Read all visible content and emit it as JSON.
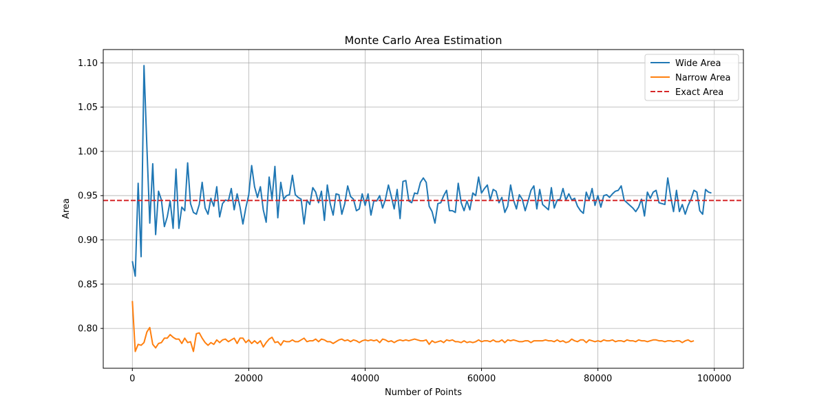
{
  "chart_data": {
    "type": "line",
    "title": "Monte Carlo Area Estimation",
    "xlabel": "Number of Points",
    "ylabel": "Area",
    "xlim": [
      -5000,
      105000
    ],
    "ylim": [
      0.755,
      1.115
    ],
    "xticks": [
      0,
      20000,
      40000,
      60000,
      80000,
      100000
    ],
    "yticks": [
      0.8,
      0.85,
      0.9,
      0.95,
      1.0,
      1.05,
      1.1
    ],
    "grid": true,
    "legend_position": "top-right",
    "series": [
      {
        "name": "Wide Area",
        "color": "#1f77b4",
        "style": "solid",
        "values": [
          0.876,
          0.859,
          0.964,
          0.881,
          1.097,
          1.005,
          0.919,
          0.986,
          0.906,
          0.955,
          0.945,
          0.915,
          0.926,
          0.944,
          0.913,
          0.98,
          0.913,
          0.937,
          0.933,
          0.987,
          0.941,
          0.931,
          0.929,
          0.94,
          0.965,
          0.936,
          0.929,
          0.947,
          0.938,
          0.96,
          0.926,
          0.941,
          0.945,
          0.944,
          0.958,
          0.934,
          0.952,
          0.937,
          0.918,
          0.936,
          0.951,
          0.984,
          0.96,
          0.948,
          0.96,
          0.934,
          0.92,
          0.971,
          0.946,
          0.983,
          0.925,
          0.965,
          0.946,
          0.95,
          0.951,
          0.973,
          0.951,
          0.948,
          0.946,
          0.918,
          0.945,
          0.94,
          0.959,
          0.954,
          0.942,
          0.955,
          0.922,
          0.962,
          0.941,
          0.928,
          0.952,
          0.951,
          0.929,
          0.941,
          0.961,
          0.949,
          0.946,
          0.933,
          0.935,
          0.952,
          0.939,
          0.952,
          0.928,
          0.944,
          0.944,
          0.95,
          0.936,
          0.946,
          0.962,
          0.949,
          0.935,
          0.957,
          0.924,
          0.966,
          0.967,
          0.944,
          0.942,
          0.953,
          0.952,
          0.965,
          0.97,
          0.965,
          0.938,
          0.932,
          0.919,
          0.941,
          0.942,
          0.95,
          0.956,
          0.933,
          0.933,
          0.931,
          0.964,
          0.942,
          0.933,
          0.944,
          0.934,
          0.953,
          0.95,
          0.971,
          0.953,
          0.958,
          0.962,
          0.945,
          0.957,
          0.955,
          0.942,
          0.948,
          0.931,
          0.938,
          0.962,
          0.945,
          0.935,
          0.951,
          0.946,
          0.933,
          0.944,
          0.956,
          0.961,
          0.935,
          0.957,
          0.94,
          0.937,
          0.934,
          0.959,
          0.936,
          0.945,
          0.946,
          0.958,
          0.945,
          0.952,
          0.945,
          0.947,
          0.938,
          0.933,
          0.93,
          0.954,
          0.945,
          0.958,
          0.939,
          0.95,
          0.937,
          0.95,
          0.951,
          0.948,
          0.952,
          0.955,
          0.956,
          0.961,
          0.945,
          0.942,
          0.939,
          0.936,
          0.932,
          0.937,
          0.946,
          0.927,
          0.954,
          0.947,
          0.954,
          0.956,
          0.942,
          0.941,
          0.94,
          0.97,
          0.949,
          0.932,
          0.956,
          0.932,
          0.94,
          0.929,
          0.939,
          0.946,
          0.956,
          0.954,
          0.933,
          0.929,
          0.957,
          0.954,
          0.953
        ],
        "x_start": 0,
        "x_step": 500
      },
      {
        "name": "Narrow Area",
        "color": "#ff7f0e",
        "style": "solid",
        "values": [
          0.831,
          0.774,
          0.782,
          0.781,
          0.784,
          0.796,
          0.801,
          0.782,
          0.778,
          0.783,
          0.784,
          0.789,
          0.789,
          0.793,
          0.79,
          0.788,
          0.788,
          0.783,
          0.789,
          0.784,
          0.785,
          0.774,
          0.794,
          0.795,
          0.789,
          0.784,
          0.781,
          0.784,
          0.782,
          0.787,
          0.784,
          0.787,
          0.788,
          0.785,
          0.787,
          0.789,
          0.783,
          0.789,
          0.789,
          0.784,
          0.787,
          0.783,
          0.786,
          0.783,
          0.786,
          0.779,
          0.784,
          0.788,
          0.79,
          0.784,
          0.785,
          0.781,
          0.786,
          0.785,
          0.785,
          0.787,
          0.785,
          0.785,
          0.787,
          0.789,
          0.785,
          0.786,
          0.786,
          0.788,
          0.785,
          0.788,
          0.787,
          0.785,
          0.785,
          0.783,
          0.785,
          0.787,
          0.788,
          0.786,
          0.787,
          0.785,
          0.787,
          0.786,
          0.784,
          0.786,
          0.787,
          0.786,
          0.787,
          0.786,
          0.787,
          0.784,
          0.788,
          0.787,
          0.785,
          0.786,
          0.784,
          0.786,
          0.787,
          0.786,
          0.787,
          0.786,
          0.787,
          0.788,
          0.787,
          0.786,
          0.786,
          0.787,
          0.782,
          0.786,
          0.784,
          0.785,
          0.786,
          0.784,
          0.787,
          0.786,
          0.787,
          0.785,
          0.785,
          0.784,
          0.786,
          0.784,
          0.785,
          0.784,
          0.785,
          0.787,
          0.785,
          0.786,
          0.786,
          0.785,
          0.787,
          0.785,
          0.785,
          0.787,
          0.784,
          0.787,
          0.786,
          0.787,
          0.786,
          0.785,
          0.785,
          0.786,
          0.786,
          0.784,
          0.786,
          0.786,
          0.786,
          0.786,
          0.787,
          0.786,
          0.786,
          0.785,
          0.787,
          0.785,
          0.786,
          0.784,
          0.785,
          0.788,
          0.786,
          0.785,
          0.787,
          0.787,
          0.784,
          0.787,
          0.786,
          0.785,
          0.786,
          0.785,
          0.787,
          0.786,
          0.786,
          0.787,
          0.785,
          0.786,
          0.786,
          0.785,
          0.787,
          0.786,
          0.786,
          0.785,
          0.787,
          0.786,
          0.786,
          0.785,
          0.786,
          0.787,
          0.787,
          0.786,
          0.786,
          0.785,
          0.786,
          0.786,
          0.785,
          0.786,
          0.786,
          0.784,
          0.786,
          0.787,
          0.785,
          0.786
        ],
        "x_start": 0,
        "x_step": 500
      },
      {
        "name": "Exact Area",
        "color": "#d62728",
        "style": "dashed",
        "constant": 0.9445
      }
    ]
  }
}
